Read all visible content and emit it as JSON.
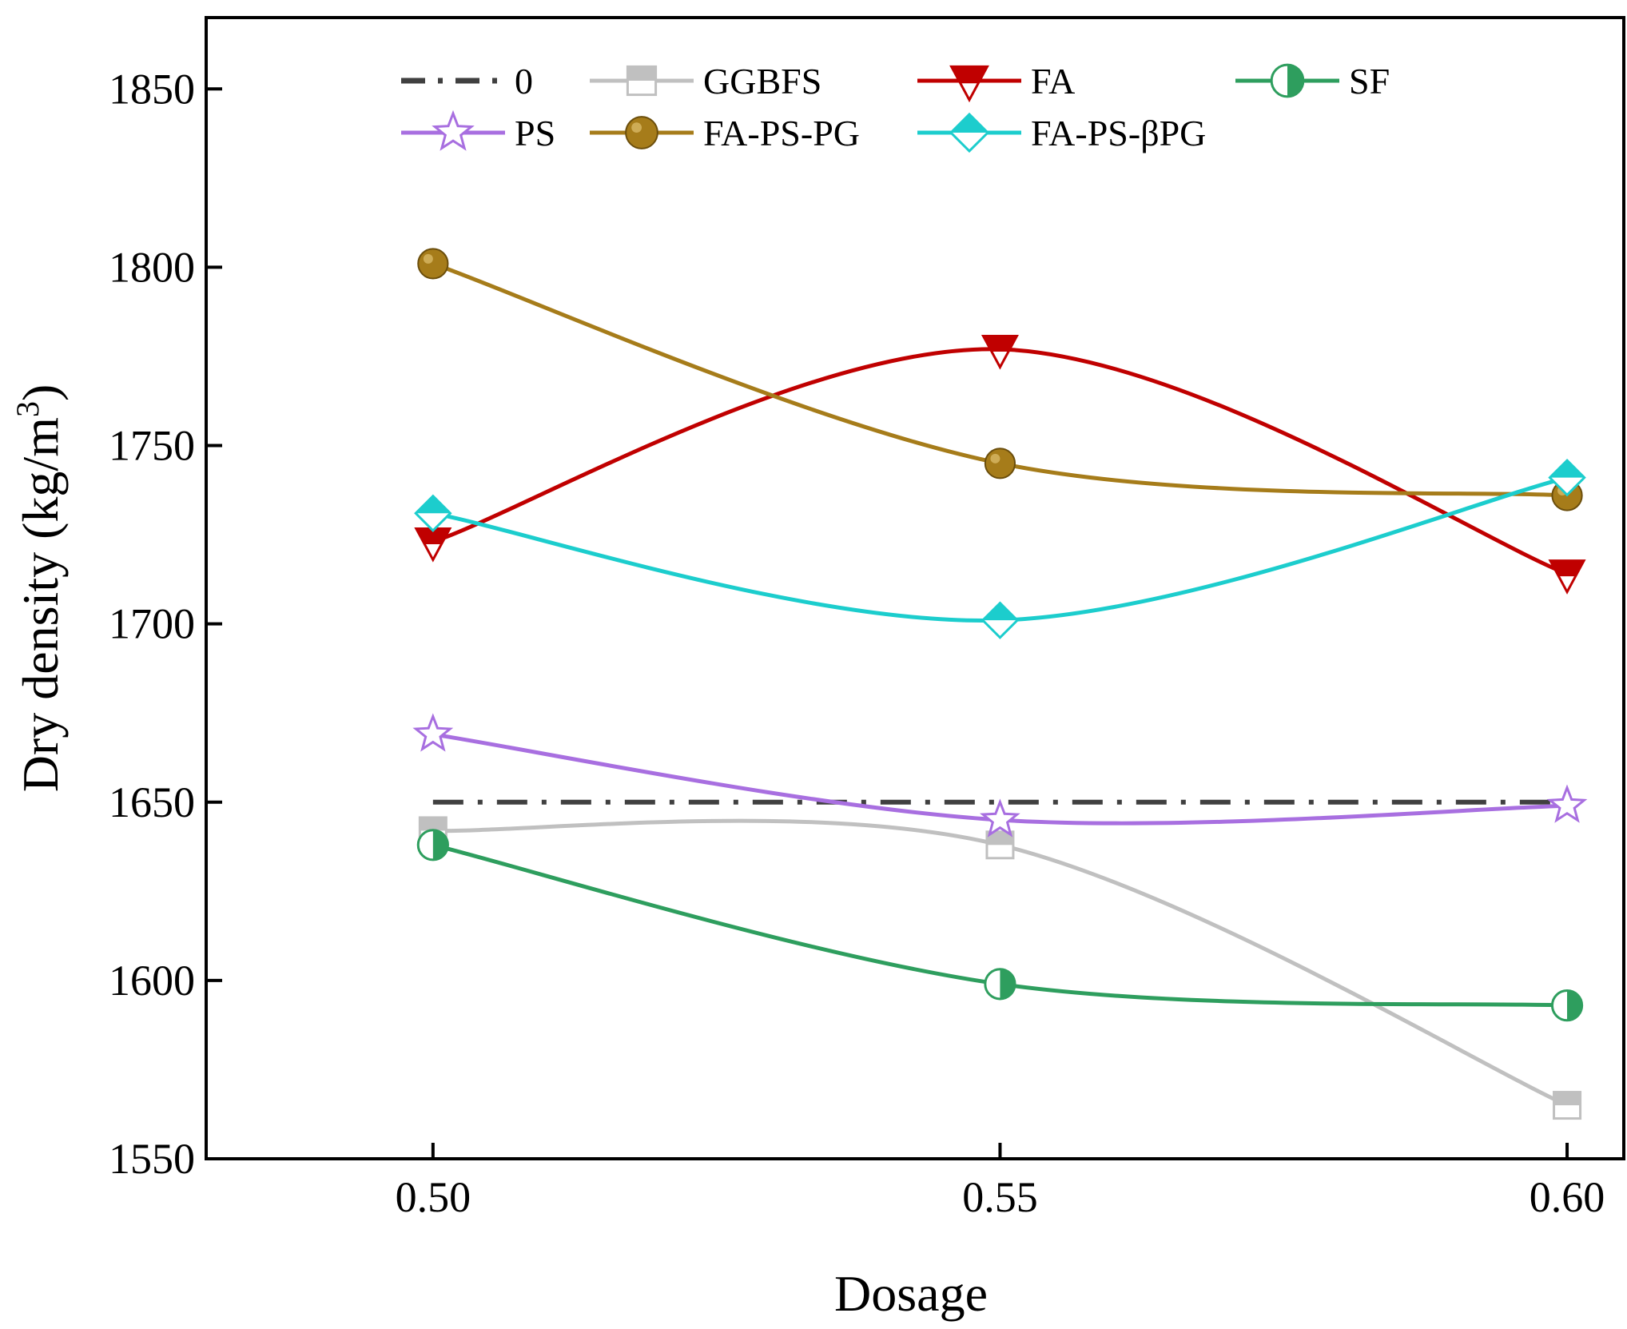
{
  "chart_data": {
    "type": "line",
    "title": "",
    "xlabel": "Dosage",
    "ylabel_main": "Dry density (kg/m",
    "ylabel_sup": "3",
    "ylabel_close": ")",
    "xlim": [
      0.48,
      0.605
    ],
    "ylim": [
      1550,
      1870
    ],
    "x": [
      0.5,
      0.55,
      0.6
    ],
    "x_tick_labels": [
      "0.50",
      "0.55",
      "0.60"
    ],
    "y_ticks": [
      1550,
      1600,
      1650,
      1700,
      1750,
      1800,
      1850
    ],
    "y_tick_labels": [
      "1550",
      "1600",
      "1650",
      "1700",
      "1750",
      "1800",
      "1850"
    ],
    "grid": false,
    "legend_position": "top",
    "series": [
      {
        "name": "0",
        "values": [
          1650,
          1650,
          1650
        ],
        "color": "#404040",
        "marker": "none",
        "dash": "dashdot"
      },
      {
        "name": "GGBFS",
        "values": [
          1642,
          1638,
          1565
        ],
        "color": "#c0c0c0",
        "marker": "square"
      },
      {
        "name": "FA",
        "values": [
          1723,
          1777,
          1714
        ],
        "color": "#c00000",
        "marker": "triangle-down"
      },
      {
        "name": "SF",
        "values": [
          1638,
          1599,
          1593
        ],
        "color": "#2e9e5e",
        "marker": "half-circle"
      },
      {
        "name": "PS",
        "values": [
          1669,
          1645,
          1649
        ],
        "color": "#a86fe0",
        "marker": "star"
      },
      {
        "name": "FA-PS-PG",
        "values": [
          1801,
          1745,
          1736
        ],
        "color": "#a67c1a",
        "marker": "circle"
      },
      {
        "name": "FA-PS-βPG",
        "values": [
          1731,
          1701,
          1741
        ],
        "color": "#1ccdcd",
        "marker": "diamond"
      }
    ]
  }
}
